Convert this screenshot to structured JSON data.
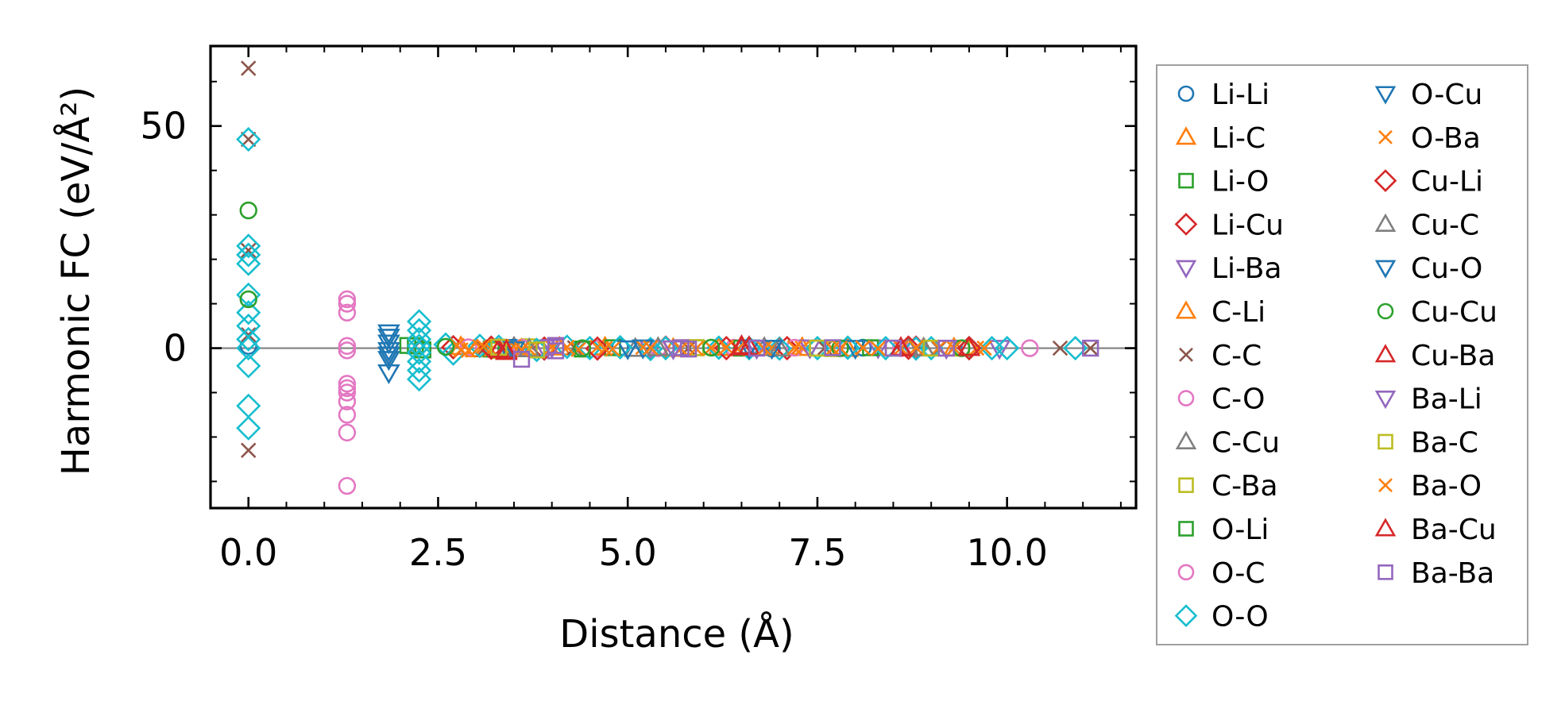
{
  "chart_data": {
    "type": "scatter",
    "title": "",
    "xlabel": "Distance (Å)",
    "ylabel": "Harmonic FC (eV/Å²)",
    "xlim": [
      -0.5,
      11.7
    ],
    "ylim": [
      -36,
      68
    ],
    "xticks": [
      0.0,
      2.5,
      5.0,
      7.5,
      10.0
    ],
    "xtick_labels": [
      "0.0",
      "2.5",
      "5.0",
      "7.5",
      "10.0"
    ],
    "yticks": [
      0,
      50
    ],
    "ytick_labels": [
      "0",
      "50"
    ],
    "reference_line_y": 0,
    "legend_position": "outside-right",
    "series": [
      {
        "name": "Li-Li",
        "marker": "circle",
        "color": "#1f77b4",
        "points": [
          [
            0,
            0.5
          ],
          [
            3.4,
            -0.3
          ],
          [
            4.9,
            0.2
          ],
          [
            6.9,
            -0.1
          ],
          [
            8.1,
            0.1
          ],
          [
            9.5,
            0.0
          ]
        ]
      },
      {
        "name": "Li-C",
        "marker": "triangle",
        "color": "#ff7f0e",
        "points": [
          [
            2.8,
            0.3
          ],
          [
            3.6,
            -0.2
          ],
          [
            4.7,
            0.2
          ],
          [
            6.2,
            0.1
          ],
          [
            7.9,
            -0.1
          ],
          [
            9.3,
            0.0
          ]
        ]
      },
      {
        "name": "Li-O",
        "marker": "square",
        "color": "#2ca02c",
        "points": [
          [
            2.1,
            0.6
          ],
          [
            2.3,
            -0.4
          ],
          [
            3.3,
            0.2
          ],
          [
            4.4,
            -0.2
          ],
          [
            5.9,
            0.1
          ],
          [
            8.5,
            0.0
          ]
        ]
      },
      {
        "name": "Li-Cu",
        "marker": "diamond",
        "color": "#d62728",
        "points": [
          [
            2.7,
            0.2
          ],
          [
            3.9,
            -0.1
          ],
          [
            5.5,
            0.1
          ],
          [
            7.1,
            0.0
          ],
          [
            8.8,
            0.1
          ]
        ]
      },
      {
        "name": "Li-Ba",
        "marker": "triangle-down",
        "color": "#9467bd",
        "points": [
          [
            3.9,
            0.1
          ],
          [
            5.3,
            -0.1
          ],
          [
            6.7,
            0.0
          ],
          [
            8.3,
            0.1
          ],
          [
            9.9,
            0.0
          ]
        ]
      },
      {
        "name": "C-Li",
        "marker": "triangle",
        "color": "#ff7f0e",
        "points": [
          [
            3.0,
            -0.2
          ],
          [
            4.1,
            0.2
          ],
          [
            5.6,
            -0.1
          ],
          [
            7.3,
            0.1
          ],
          [
            8.9,
            0.0
          ]
        ]
      },
      {
        "name": "C-C",
        "marker": "x",
        "color": "#8c564b",
        "points": [
          [
            0,
            63
          ],
          [
            0,
            47
          ],
          [
            0,
            22
          ],
          [
            0,
            3
          ],
          [
            0,
            -23
          ],
          [
            2.2,
            0.4
          ],
          [
            3.1,
            -0.3
          ],
          [
            4.3,
            0.1
          ],
          [
            5.8,
            0.0
          ],
          [
            7.6,
            0.1
          ],
          [
            9.1,
            -0.1
          ],
          [
            10.7,
            0.0
          ],
          [
            11.1,
            0.0
          ]
        ]
      },
      {
        "name": "C-O",
        "marker": "circle",
        "color": "#e377c2",
        "points": [
          [
            1.3,
            11
          ],
          [
            1.3,
            8
          ],
          [
            1.3,
            0.5
          ],
          [
            1.3,
            -0.5
          ],
          [
            1.3,
            -8
          ],
          [
            1.3,
            -9
          ],
          [
            1.3,
            -12
          ],
          [
            1.3,
            -15
          ],
          [
            1.3,
            -19
          ],
          [
            1.3,
            -31
          ],
          [
            2.9,
            0.2
          ],
          [
            4.6,
            -0.1
          ],
          [
            6.4,
            0.1
          ],
          [
            8.6,
            0.0
          ],
          [
            10.3,
            0.0
          ]
        ]
      },
      {
        "name": "C-Cu",
        "marker": "triangle",
        "color": "#7f7f7f",
        "points": [
          [
            3.5,
            0.2
          ],
          [
            5.1,
            -0.1
          ],
          [
            6.8,
            0.1
          ],
          [
            8.7,
            0.0
          ]
        ]
      },
      {
        "name": "C-Ba",
        "marker": "square",
        "color": "#bcbd22",
        "points": [
          [
            3.3,
            -0.5
          ],
          [
            3.7,
            0.3
          ],
          [
            5.9,
            0.1
          ],
          [
            7.7,
            -0.1
          ],
          [
            9.4,
            0.0
          ]
        ]
      },
      {
        "name": "O-Li",
        "marker": "square",
        "color": "#2ca02c",
        "points": [
          [
            2.2,
            0.5
          ],
          [
            3.2,
            -0.2
          ],
          [
            4.8,
            0.1
          ],
          [
            6.5,
            0.0
          ],
          [
            8.2,
            0.1
          ]
        ]
      },
      {
        "name": "O-C",
        "marker": "circle",
        "color": "#e377c2",
        "points": [
          [
            1.3,
            10
          ],
          [
            1.3,
            -10
          ],
          [
            3.6,
            0.1
          ],
          [
            5.4,
            0.0
          ],
          [
            7.2,
            0.1
          ]
        ]
      },
      {
        "name": "O-O",
        "marker": "diamond",
        "color": "#17becf",
        "points": [
          [
            0,
            47
          ],
          [
            0,
            23
          ],
          [
            0,
            21
          ],
          [
            0,
            19
          ],
          [
            0,
            12
          ],
          [
            0,
            8
          ],
          [
            0,
            5
          ],
          [
            0,
            2
          ],
          [
            0,
            0
          ],
          [
            0,
            -4
          ],
          [
            0,
            -13
          ],
          [
            0,
            -18
          ],
          [
            2.25,
            6
          ],
          [
            2.25,
            4
          ],
          [
            2.25,
            2
          ],
          [
            2.25,
            0.5
          ],
          [
            2.25,
            -1
          ],
          [
            2.25,
            -3
          ],
          [
            2.25,
            -5
          ],
          [
            2.25,
            -7
          ],
          [
            2.6,
            0.8
          ],
          [
            2.7,
            -1.2
          ],
          [
            3.05,
            0.5
          ],
          [
            3.3,
            0.3
          ],
          [
            3.8,
            -0.4
          ],
          [
            4.2,
            0.3
          ],
          [
            4.5,
            0.0
          ],
          [
            4.9,
            0.2
          ],
          [
            5.3,
            -0.2
          ],
          [
            5.5,
            0.0
          ],
          [
            6.2,
            0.1
          ],
          [
            6.6,
            0.0
          ],
          [
            7.0,
            -0.1
          ],
          [
            7.5,
            0.0
          ],
          [
            7.9,
            0.1
          ],
          [
            8.4,
            0.0
          ],
          [
            8.8,
            -0.1
          ],
          [
            9.0,
            0.0
          ],
          [
            9.5,
            0.0
          ],
          [
            9.8,
            0.0
          ],
          [
            10.0,
            0.0
          ],
          [
            10.9,
            0.0
          ]
        ]
      },
      {
        "name": "O-Cu",
        "marker": "triangle-down",
        "color": "#1f77b4",
        "points": [
          [
            1.85,
            3.5
          ],
          [
            1.85,
            1.2
          ],
          [
            1.85,
            -0.5
          ],
          [
            1.85,
            -2.5
          ],
          [
            1.85,
            -5.5
          ],
          [
            3.4,
            0.2
          ],
          [
            5.0,
            -0.1
          ],
          [
            6.6,
            0.1
          ],
          [
            8.0,
            0.0
          ]
        ]
      },
      {
        "name": "O-Ba",
        "marker": "x",
        "color": "#ff7f0e",
        "points": [
          [
            2.75,
            0.6
          ],
          [
            2.9,
            -0.5
          ],
          [
            3.05,
            0.3
          ],
          [
            3.2,
            -0.3
          ],
          [
            3.5,
            0.4
          ],
          [
            3.7,
            -0.2
          ],
          [
            4.0,
            0.3
          ],
          [
            4.35,
            -0.3
          ],
          [
            4.6,
            0.2
          ],
          [
            4.8,
            -0.2
          ],
          [
            5.2,
            0.2
          ],
          [
            5.7,
            -0.1
          ],
          [
            6.1,
            0.1
          ],
          [
            6.45,
            -0.2
          ],
          [
            6.9,
            0.1
          ],
          [
            7.3,
            0.0
          ],
          [
            7.7,
            -0.1
          ],
          [
            8.1,
            0.1
          ],
          [
            8.6,
            0.0
          ],
          [
            9.1,
            0.1
          ],
          [
            9.6,
            0.0
          ]
        ]
      },
      {
        "name": "Cu-Li",
        "marker": "diamond",
        "color": "#d62728",
        "points": [
          [
            3.2,
            0.1
          ],
          [
            4.6,
            -0.1
          ],
          [
            6.3,
            0.0
          ],
          [
            8.7,
            0.1
          ],
          [
            9.5,
            0.0
          ]
        ]
      },
      {
        "name": "Cu-C",
        "marker": "triangle",
        "color": "#7f7f7f",
        "points": [
          [
            3.7,
            -0.2
          ],
          [
            5.4,
            0.1
          ],
          [
            7.0,
            0.0
          ],
          [
            8.9,
            0.0
          ]
        ]
      },
      {
        "name": "Cu-O",
        "marker": "triangle-down",
        "color": "#1f77b4",
        "points": [
          [
            1.85,
            2.5
          ],
          [
            1.85,
            -1.5
          ],
          [
            3.5,
            -0.3
          ],
          [
            5.2,
            0.1
          ],
          [
            6.9,
            0.0
          ]
        ]
      },
      {
        "name": "Cu-Cu",
        "marker": "circle",
        "color": "#2ca02c",
        "points": [
          [
            0,
            31
          ],
          [
            0,
            11
          ],
          [
            2.6,
            0.3
          ],
          [
            4.4,
            0.0
          ],
          [
            6.1,
            0.1
          ],
          [
            7.8,
            0.0
          ],
          [
            9.4,
            0.0
          ]
        ]
      },
      {
        "name": "Cu-Ba",
        "marker": "triangle",
        "color": "#d62728",
        "points": [
          [
            3.3,
            -0.3
          ],
          [
            3.4,
            -0.8
          ],
          [
            6.5,
            0.5
          ],
          [
            6.6,
            0.3
          ],
          [
            8.6,
            0.1
          ]
        ]
      },
      {
        "name": "Ba-Li",
        "marker": "triangle-down",
        "color": "#9467bd",
        "points": [
          [
            4.0,
            0.2
          ],
          [
            5.6,
            -0.1
          ],
          [
            7.4,
            0.1
          ],
          [
            9.2,
            0.0
          ]
        ]
      },
      {
        "name": "Ba-C",
        "marker": "square",
        "color": "#bcbd22",
        "points": [
          [
            3.3,
            0.2
          ],
          [
            3.8,
            -0.4
          ],
          [
            5.8,
            0.1
          ],
          [
            7.5,
            0.0
          ],
          [
            9.0,
            0.0
          ]
        ]
      },
      {
        "name": "Ba-O",
        "marker": "x",
        "color": "#ff7f0e",
        "points": [
          [
            2.8,
            -0.4
          ],
          [
            3.1,
            0.4
          ],
          [
            3.6,
            -0.3
          ],
          [
            4.2,
            0.2
          ],
          [
            4.7,
            -0.1
          ],
          [
            5.3,
            0.1
          ],
          [
            5.9,
            -0.1
          ],
          [
            6.3,
            0.2
          ],
          [
            6.8,
            -0.1
          ],
          [
            7.2,
            0.1
          ],
          [
            7.8,
            0.0
          ],
          [
            8.3,
            -0.1
          ],
          [
            8.8,
            0.1
          ],
          [
            9.3,
            0.0
          ],
          [
            9.7,
            0.0
          ]
        ]
      },
      {
        "name": "Ba-Cu",
        "marker": "triangle",
        "color": "#d62728",
        "points": [
          [
            3.4,
            -0.5
          ],
          [
            6.5,
            0.2
          ],
          [
            8.6,
            0.0
          ],
          [
            9.5,
            0.1
          ]
        ]
      },
      {
        "name": "Ba-Ba",
        "marker": "square",
        "color": "#9467bd",
        "points": [
          [
            4.05,
            -0.6
          ],
          [
            4.05,
            0.6
          ],
          [
            3.6,
            -2.5
          ],
          [
            5.7,
            0.1
          ],
          [
            5.8,
            -0.2
          ],
          [
            6.7,
            0.0
          ],
          [
            7.7,
            0.1
          ],
          [
            8.5,
            0.0
          ],
          [
            9.2,
            0.0
          ],
          [
            11.1,
            0.0
          ]
        ]
      }
    ]
  }
}
